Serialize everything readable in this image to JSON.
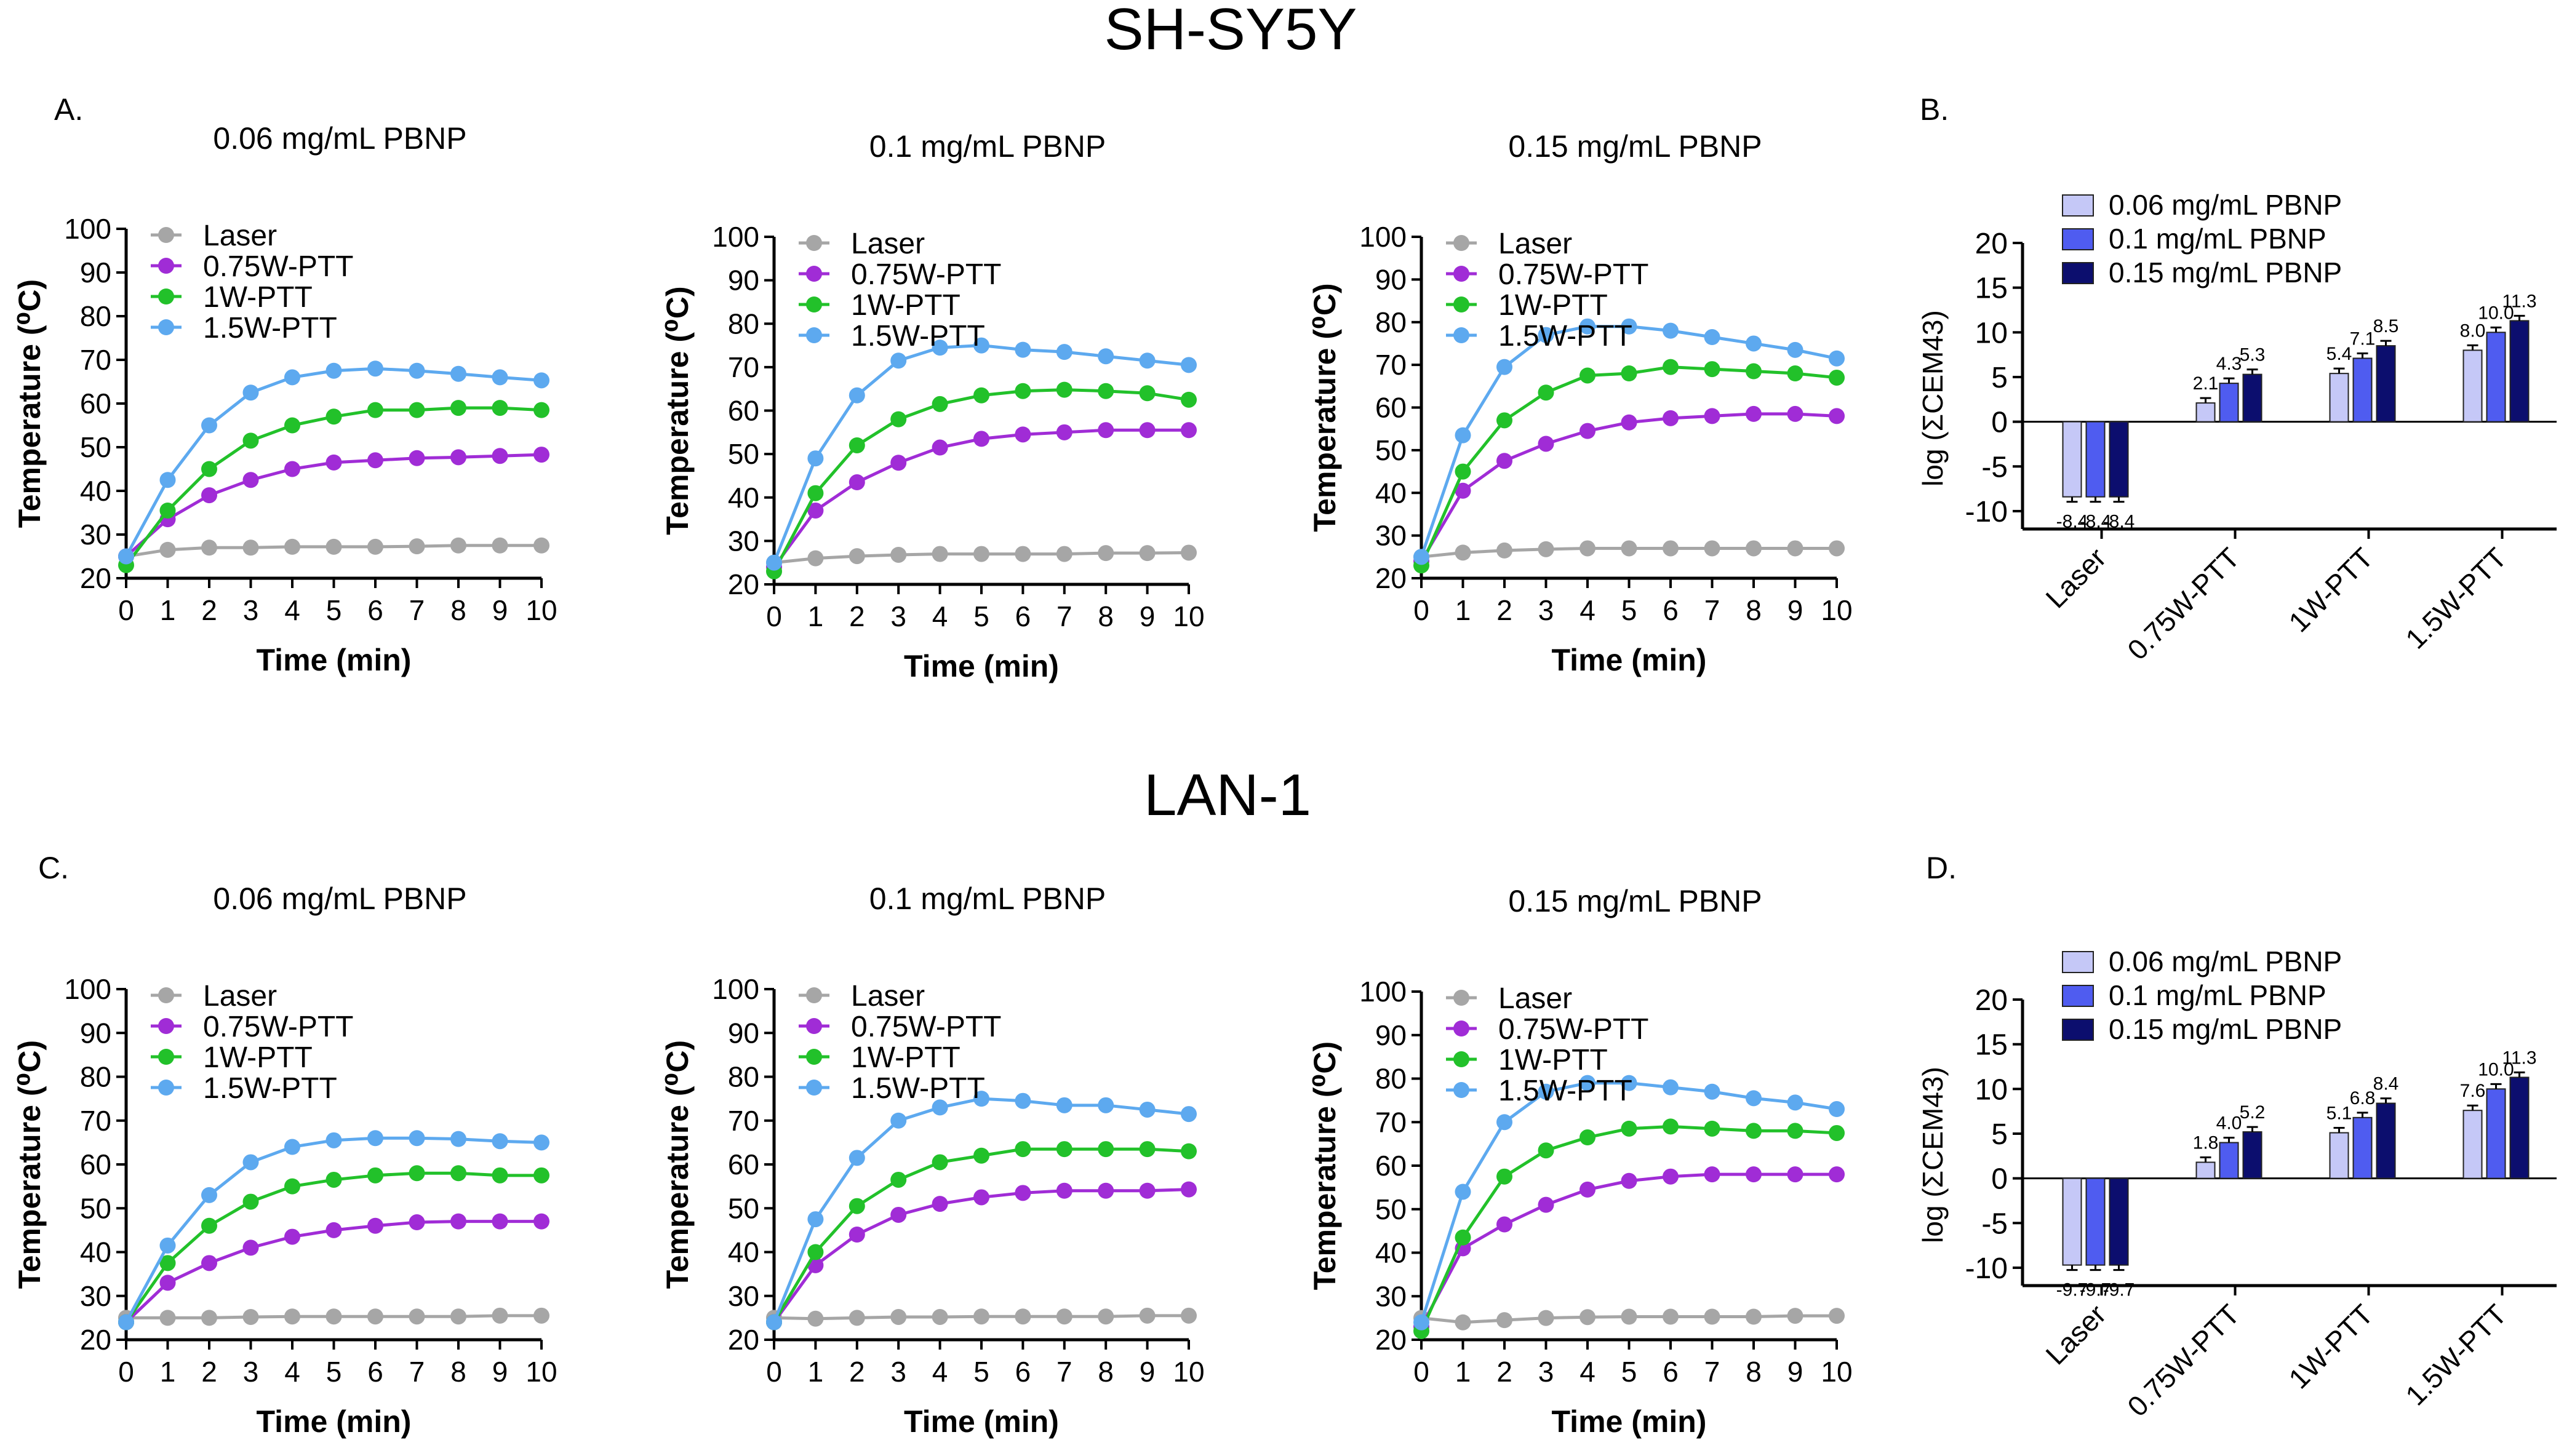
{
  "headings": {
    "row1": "SH-SY5Y",
    "row2": "LAN-1",
    "panelA": "A.",
    "panelB": "B.",
    "panelC": "C.",
    "panelD": "D."
  },
  "colors": {
    "laser": "#a6a6a6",
    "w075": "#a02cd6",
    "w1": "#22c12a",
    "w15": "#5da9ef",
    "bar006": "#c5c8f7",
    "bar01": "#4f5cf0",
    "bar015": "#0c0e6e"
  },
  "chart_data": [
    {
      "id": "A1",
      "type": "line",
      "title": "0.06 mg/mL  PBNP",
      "xlabel": "Time (min)",
      "ylabel": "Temperature (⁰C)",
      "xlim": [
        0,
        10
      ],
      "ylim": [
        20,
        100
      ],
      "x": [
        0,
        1,
        2,
        3,
        4,
        5,
        6,
        7,
        8,
        9,
        10
      ],
      "series": [
        {
          "name": "Laser",
          "values": [
            25,
            26.5,
            27,
            27,
            27.2,
            27.2,
            27.2,
            27.3,
            27.5,
            27.5,
            27.5
          ]
        },
        {
          "name": "0.75W-PTT",
          "values": [
            25,
            33.5,
            39,
            42.5,
            45,
            46.5,
            47,
            47.5,
            47.7,
            48,
            48.3
          ]
        },
        {
          "name": "1W-PTT",
          "values": [
            23,
            35.5,
            45,
            51.5,
            55,
            57,
            58.5,
            58.5,
            59,
            59,
            58.5
          ]
        },
        {
          "name": "1.5W-PTT",
          "values": [
            25,
            42.5,
            55,
            62.5,
            66,
            67.5,
            68,
            67.5,
            66.8,
            66,
            65.3
          ]
        }
      ]
    },
    {
      "id": "A2",
      "type": "line",
      "title": "0.1 mg/mL  PBNP",
      "xlabel": "Time (min)",
      "ylabel": "Temperature (⁰C)",
      "xlim": [
        0,
        10
      ],
      "ylim": [
        20,
        100
      ],
      "x": [
        0,
        1,
        2,
        3,
        4,
        5,
        6,
        7,
        8,
        9,
        10
      ],
      "series": [
        {
          "name": "Laser",
          "values": [
            25,
            26,
            26.5,
            26.8,
            27,
            27,
            27,
            27,
            27.2,
            27.2,
            27.3
          ]
        },
        {
          "name": "0.75W-PTT",
          "values": [
            24,
            37,
            43.5,
            48,
            51.5,
            53.5,
            54.5,
            55,
            55.5,
            55.5,
            55.5
          ]
        },
        {
          "name": "1W-PTT",
          "values": [
            23,
            41,
            52,
            58,
            61.5,
            63.5,
            64.5,
            64.8,
            64.5,
            64,
            62.5
          ]
        },
        {
          "name": "1.5W-PTT",
          "values": [
            25,
            49,
            63.5,
            71.5,
            74.5,
            75,
            74,
            73.5,
            72.5,
            71.5,
            70.5
          ]
        }
      ]
    },
    {
      "id": "A3",
      "type": "line",
      "title": "0.15 mg/mL  PBNP",
      "xlabel": "Time (min)",
      "ylabel": "Temperature (⁰C)",
      "xlim": [
        0,
        10
      ],
      "ylim": [
        20,
        100
      ],
      "x": [
        0,
        1,
        2,
        3,
        4,
        5,
        6,
        7,
        8,
        9,
        10
      ],
      "series": [
        {
          "name": "Laser",
          "values": [
            25,
            26,
            26.5,
            26.8,
            27,
            27,
            27,
            27,
            27,
            27,
            27
          ]
        },
        {
          "name": "0.75W-PTT",
          "values": [
            24,
            40.5,
            47.5,
            51.5,
            54.5,
            56.5,
            57.5,
            58,
            58.5,
            58.5,
            58
          ]
        },
        {
          "name": "1W-PTT",
          "values": [
            23,
            45,
            57,
            63.5,
            67.5,
            68,
            69.5,
            69,
            68.5,
            68,
            67
          ]
        },
        {
          "name": "1.5W-PTT",
          "values": [
            25,
            53.5,
            69.5,
            77,
            79,
            79,
            78,
            76.5,
            75,
            73.5,
            71.5
          ]
        }
      ]
    },
    {
      "id": "B",
      "type": "bar",
      "ylabel": "log (ΣCEM43)",
      "ylim": [
        -12,
        20
      ],
      "yticks": [
        -10,
        -5,
        0,
        5,
        10,
        15,
        20
      ],
      "categories": [
        "Laser",
        "0.75W-PTT",
        "1W-PTT",
        "1.5W-PTT"
      ],
      "series": [
        {
          "name": "0.06 mg/mL PBNP",
          "values": [
            -8.4,
            2.1,
            5.4,
            8.0
          ],
          "labels": [
            "-8.4",
            "2.1",
            "5.4",
            "8.0"
          ]
        },
        {
          "name": "0.1 mg/mL PBNP",
          "values": [
            -8.4,
            4.3,
            7.1,
            10.0
          ],
          "labels": [
            "-8.4",
            "4.3",
            "7.1",
            "10.0"
          ]
        },
        {
          "name": "0.15 mg/mL PBNP",
          "values": [
            -8.4,
            5.3,
            8.5,
            11.3
          ],
          "labels": [
            "-8.4",
            "5.3",
            "8.5",
            "11.3"
          ]
        }
      ]
    },
    {
      "id": "C1",
      "type": "line",
      "title": "0.06 mg/mL  PBNP",
      "xlabel": "Time (min)",
      "ylabel": "Temperature (⁰C)",
      "xlim": [
        0,
        10
      ],
      "ylim": [
        20,
        100
      ],
      "x": [
        0,
        1,
        2,
        3,
        4,
        5,
        6,
        7,
        8,
        9,
        10
      ],
      "series": [
        {
          "name": "Laser",
          "values": [
            25,
            25,
            25,
            25.2,
            25.3,
            25.3,
            25.3,
            25.3,
            25.3,
            25.5,
            25.5
          ]
        },
        {
          "name": "0.75W-PTT",
          "values": [
            24,
            33,
            37.5,
            41,
            43.5,
            45,
            46,
            46.8,
            47,
            47,
            47
          ]
        },
        {
          "name": "1W-PTT",
          "values": [
            24,
            37.5,
            46,
            51.5,
            55,
            56.5,
            57.5,
            58,
            58,
            57.5,
            57.5
          ]
        },
        {
          "name": "1.5W-PTT",
          "values": [
            24,
            41.5,
            53,
            60.5,
            64,
            65.5,
            66,
            66,
            65.8,
            65.3,
            65
          ]
        }
      ]
    },
    {
      "id": "C2",
      "type": "line",
      "title": "0.1 mg/mL  PBNP",
      "xlabel": "Time (min)",
      "ylabel": "Temperature (⁰C)",
      "xlim": [
        0,
        10
      ],
      "ylim": [
        20,
        100
      ],
      "x": [
        0,
        1,
        2,
        3,
        4,
        5,
        6,
        7,
        8,
        9,
        10
      ],
      "series": [
        {
          "name": "Laser",
          "values": [
            25,
            24.8,
            25,
            25.2,
            25.2,
            25.3,
            25.3,
            25.3,
            25.3,
            25.5,
            25.5
          ]
        },
        {
          "name": "0.75W-PTT",
          "values": [
            24,
            37,
            44,
            48.5,
            51,
            52.5,
            53.5,
            54,
            54,
            54,
            54.3
          ]
        },
        {
          "name": "1W-PTT",
          "values": [
            24,
            40,
            50.5,
            56.5,
            60.5,
            62,
            63.5,
            63.5,
            63.5,
            63.5,
            63
          ]
        },
        {
          "name": "1.5W-PTT",
          "values": [
            24,
            47.5,
            61.5,
            70,
            73,
            75,
            74.5,
            73.5,
            73.5,
            72.5,
            71.5
          ]
        }
      ]
    },
    {
      "id": "C3",
      "type": "line",
      "title": "0.15 mg/mL  PBNP",
      "xlabel": "Time (min)",
      "ylabel": "Temperature (⁰C)",
      "xlim": [
        0,
        10
      ],
      "ylim": [
        20,
        100
      ],
      "x": [
        0,
        1,
        2,
        3,
        4,
        5,
        6,
        7,
        8,
        9,
        10
      ],
      "series": [
        {
          "name": "Laser",
          "values": [
            25,
            24,
            24.5,
            25,
            25.2,
            25.3,
            25.3,
            25.3,
            25.3,
            25.5,
            25.5
          ]
        },
        {
          "name": "0.75W-PTT",
          "values": [
            23,
            41,
            46.5,
            51,
            54.5,
            56.5,
            57.5,
            58,
            58,
            58,
            58
          ]
        },
        {
          "name": "1W-PTT",
          "values": [
            22,
            43.5,
            57.5,
            63.5,
            66.5,
            68.5,
            69,
            68.5,
            68,
            68,
            67.5
          ]
        },
        {
          "name": "1.5W-PTT",
          "values": [
            24,
            54,
            70,
            77,
            79,
            79,
            78,
            77,
            75.5,
            74.5,
            73
          ]
        }
      ]
    },
    {
      "id": "D",
      "type": "bar",
      "ylabel": "log (ΣCEM43)",
      "ylim": [
        -12,
        20
      ],
      "yticks": [
        -10,
        -5,
        0,
        5,
        10,
        15,
        20
      ],
      "categories": [
        "Laser",
        "0.75W-PTT",
        "1W-PTT",
        "1.5W-PTT"
      ],
      "series": [
        {
          "name": "0.06 mg/mL PBNP",
          "values": [
            -9.7,
            1.8,
            5.1,
            7.6
          ],
          "labels": [
            "-9.7",
            "1.8",
            "5.1",
            "7.6"
          ]
        },
        {
          "name": "0.1 mg/mL PBNP",
          "values": [
            -9.7,
            4.0,
            6.8,
            10.0
          ],
          "labels": [
            "-9.7",
            "4.0",
            "6.8",
            "10.0"
          ]
        },
        {
          "name": "0.15 mg/mL PBNP",
          "values": [
            -9.7,
            5.2,
            8.4,
            11.3
          ],
          "labels": [
            "-9.7",
            "5.2",
            "8.4",
            "11.3"
          ]
        }
      ]
    }
  ]
}
